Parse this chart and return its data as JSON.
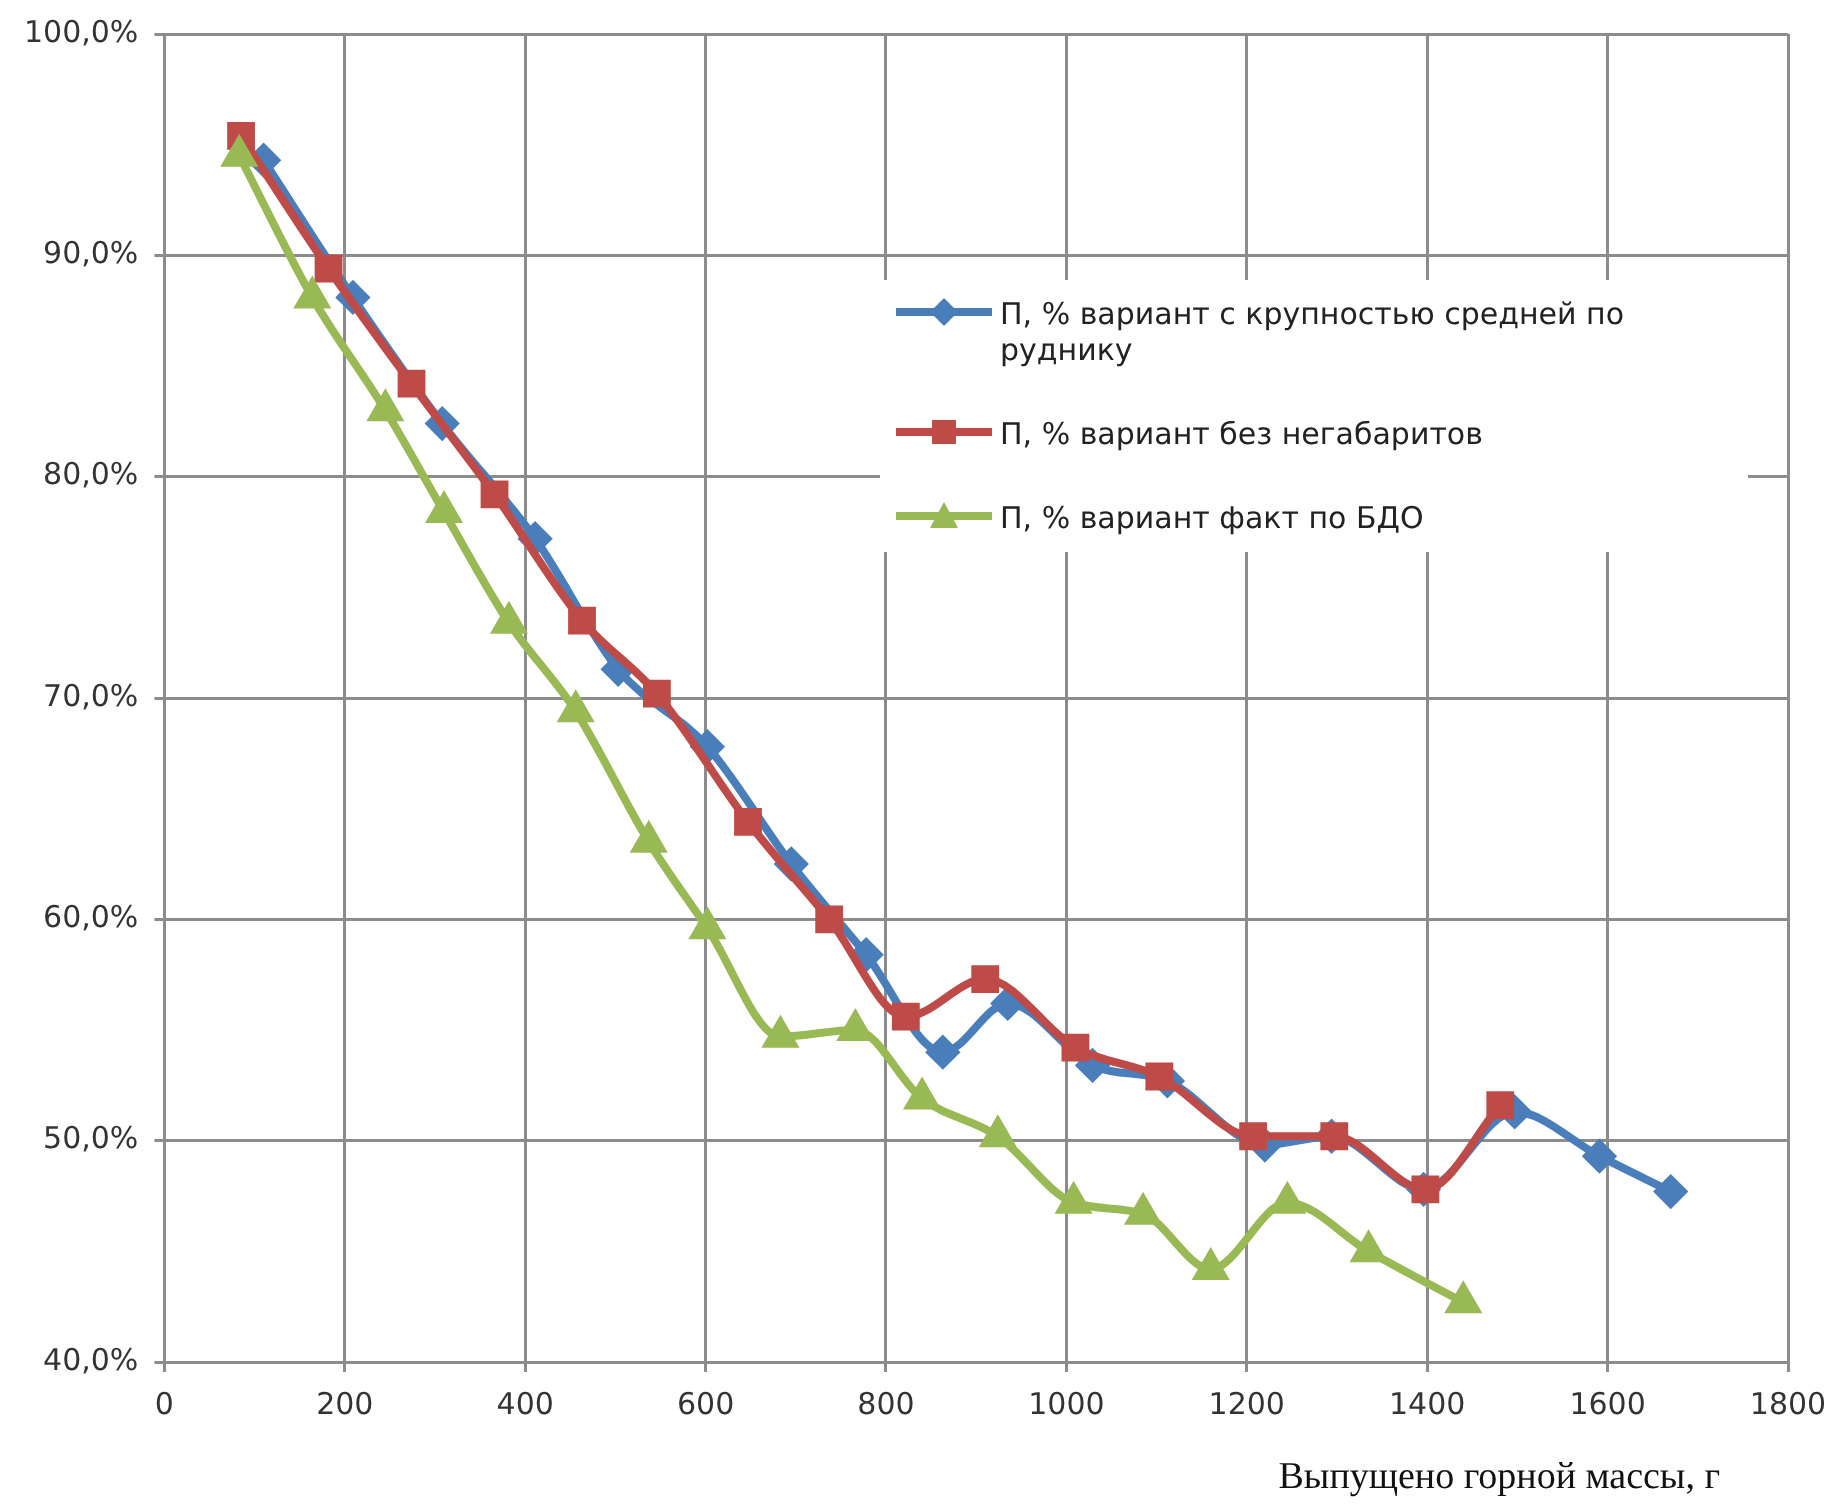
{
  "chart_data": {
    "type": "line",
    "xlabel": "Выпущено горной массы, г",
    "xlim": [
      0,
      1800
    ],
    "xticks": [
      0,
      200,
      400,
      600,
      800,
      1000,
      1200,
      1400,
      1600,
      1800
    ],
    "ylim": [
      40,
      100
    ],
    "yticks": [
      {
        "value": 40,
        "label": "40,0%"
      },
      {
        "value": 50,
        "label": "50,0%"
      },
      {
        "value": 60,
        "label": "60,0%"
      },
      {
        "value": 70,
        "label": "70,0%"
      },
      {
        "value": 80,
        "label": "80,0%"
      },
      {
        "value": 90,
        "label": "90,0%"
      },
      {
        "value": 100,
        "label": "100,0%"
      }
    ],
    "grid": true,
    "legend": "right",
    "series": [
      {
        "name": "П, % вариант  с крупностью средней по руднику",
        "color": "#4a7ebb",
        "marker": "diamond",
        "x": [
          110,
          209,
          308,
          411,
          503,
          602,
          695,
          778,
          863,
          935,
          1029,
          1112,
          1220,
          1294,
          1396,
          1497,
          1591,
          1670
        ],
        "values": [
          94.3,
          88.1,
          82.4,
          77.2,
          71.3,
          67.8,
          62.5,
          58.4,
          54.0,
          56.2,
          53.4,
          52.7,
          49.8,
          50.2,
          47.8,
          51.3,
          49.3,
          47.7
        ]
      },
      {
        "name": "П, % вариант  без негабаритов",
        "color": "#be4b48",
        "marker": "square",
        "x": [
          85,
          182,
          274,
          366,
          463,
          546,
          647,
          737,
          822,
          910,
          1010,
          1103,
          1207,
          1297,
          1398,
          1481
        ],
        "values": [
          95.4,
          89.4,
          84.2,
          79.2,
          73.5,
          70.2,
          64.4,
          60.0,
          55.6,
          57.3,
          54.2,
          52.9,
          50.2,
          50.2,
          47.8,
          51.6
        ]
      },
      {
        "name": "П, % вариант  факт по БДО",
        "color": "#98b954",
        "marker": "triangle",
        "x": [
          83,
          164,
          245,
          310,
          382,
          456,
          537,
          602,
          683,
          766,
          840,
          924,
          1008,
          1085,
          1160,
          1245,
          1335,
          1440
        ],
        "values": [
          94.5,
          88.1,
          83.0,
          78.4,
          73.4,
          69.4,
          63.5,
          59.6,
          54.7,
          55.0,
          51.9,
          50.2,
          47.2,
          46.7,
          44.2,
          47.2,
          45.0,
          42.7
        ]
      }
    ]
  }
}
